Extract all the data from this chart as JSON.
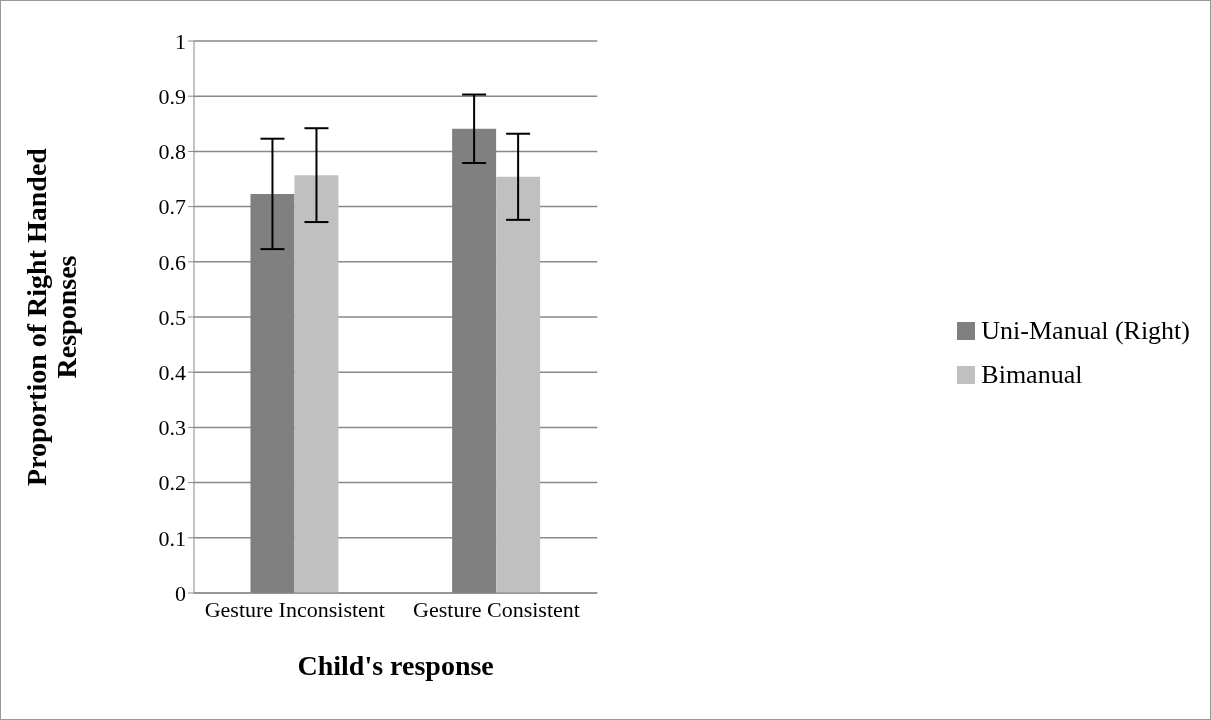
{
  "chart_data": {
    "type": "bar",
    "xlabel": "Child's response",
    "ylabel": "Proportion of Right Handed Responses",
    "categories": [
      "Gesture Inconsistent",
      "Gesture Consistent"
    ],
    "series": [
      {
        "name": "Uni-Manual (Right)",
        "color": "#808080",
        "values": [
          0.723,
          0.841
        ],
        "errors": [
          0.1,
          0.062
        ]
      },
      {
        "name": "Bimanual",
        "color": "#c0c0c0",
        "values": [
          0.757,
          0.754
        ],
        "errors": [
          0.085,
          0.078
        ]
      }
    ],
    "ylim": [
      0,
      1
    ],
    "yticks": [
      0,
      0.1,
      0.2,
      0.3,
      0.4,
      0.5,
      0.6,
      0.7,
      0.8,
      0.9,
      1
    ],
    "grid": "y",
    "legend": "right"
  }
}
